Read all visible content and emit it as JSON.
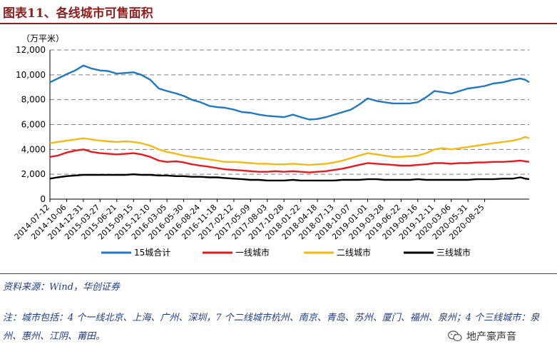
{
  "header": {
    "title": "图表11、各线城市可售面积"
  },
  "chart_data": {
    "type": "line",
    "title": "图表11、各线城市可售面积",
    "unit_label": "（万平米）",
    "ylim": [
      0,
      12000
    ],
    "yticks": [
      0,
      2000,
      4000,
      6000,
      8000,
      10000,
      12000
    ],
    "ytick_labels": [
      "0",
      "2,000",
      "4,000",
      "6,000",
      "8,000",
      "10,000",
      "12,000"
    ],
    "xlim": [
      0,
      2465
    ],
    "x_ticks": [
      {
        "label": "2014-07-12",
        "x": 0
      },
      {
        "label": "2014-10-06",
        "x": 86
      },
      {
        "label": "2014-12-31",
        "x": 172
      },
      {
        "label": "2015-03-27",
        "x": 258
      },
      {
        "label": "2015-06-21",
        "x": 344
      },
      {
        "label": "2015-09-15",
        "x": 430
      },
      {
        "label": "2015-12-10",
        "x": 516
      },
      {
        "label": "2016-03-05",
        "x": 602
      },
      {
        "label": "2016-05-30",
        "x": 688
      },
      {
        "label": "2016-08-24",
        "x": 774
      },
      {
        "label": "2016-11-18",
        "x": 860
      },
      {
        "label": "2017-02-12",
        "x": 946
      },
      {
        "label": "2017-05-09",
        "x": 1032
      },
      {
        "label": "2017-08-03",
        "x": 1118
      },
      {
        "label": "2017-10-28",
        "x": 1204
      },
      {
        "label": "2018-01-22",
        "x": 1290
      },
      {
        "label": "2018-04-18",
        "x": 1376
      },
      {
        "label": "2018-07-13",
        "x": 1462
      },
      {
        "label": "2018-10-07",
        "x": 1548
      },
      {
        "label": "2019-01-01",
        "x": 1634
      },
      {
        "label": "2019-03-28",
        "x": 1720
      },
      {
        "label": "2019-06-22",
        "x": 1806
      },
      {
        "label": "2019-09-16",
        "x": 1892
      },
      {
        "label": "2019-12-11",
        "x": 1978
      },
      {
        "label": "2020-03-06",
        "x": 2064
      },
      {
        "label": "2020-05-31",
        "x": 2150
      },
      {
        "label": "2020-08-25",
        "x": 2236
      }
    ],
    "grid": "horizontal-dashed",
    "legend_position": "bottom",
    "series": [
      {
        "name": "15城合计",
        "color": "#1f78c1",
        "points": [
          [
            0,
            9400
          ],
          [
            40,
            9700
          ],
          [
            86,
            10050
          ],
          [
            130,
            10350
          ],
          [
            172,
            10750
          ],
          [
            215,
            10500
          ],
          [
            258,
            10350
          ],
          [
            300,
            10300
          ],
          [
            344,
            10100
          ],
          [
            390,
            10150
          ],
          [
            430,
            10200
          ],
          [
            470,
            10000
          ],
          [
            516,
            9600
          ],
          [
            560,
            8900
          ],
          [
            602,
            8700
          ],
          [
            650,
            8500
          ],
          [
            688,
            8300
          ],
          [
            730,
            8000
          ],
          [
            774,
            7800
          ],
          [
            820,
            7500
          ],
          [
            860,
            7400
          ],
          [
            900,
            7350
          ],
          [
            946,
            7200
          ],
          [
            990,
            7000
          ],
          [
            1032,
            6950
          ],
          [
            1075,
            6800
          ],
          [
            1118,
            6700
          ],
          [
            1160,
            6650
          ],
          [
            1204,
            6600
          ],
          [
            1250,
            6800
          ],
          [
            1290,
            6600
          ],
          [
            1335,
            6400
          ],
          [
            1376,
            6450
          ],
          [
            1420,
            6600
          ],
          [
            1462,
            6800
          ],
          [
            1505,
            7000
          ],
          [
            1548,
            7200
          ],
          [
            1590,
            7600
          ],
          [
            1634,
            8100
          ],
          [
            1680,
            7900
          ],
          [
            1720,
            7800
          ],
          [
            1765,
            7700
          ],
          [
            1806,
            7700
          ],
          [
            1850,
            7700
          ],
          [
            1892,
            7800
          ],
          [
            1935,
            8200
          ],
          [
            1978,
            8700
          ],
          [
            2020,
            8600
          ],
          [
            2064,
            8500
          ],
          [
            2108,
            8700
          ],
          [
            2150,
            8900
          ],
          [
            2195,
            9000
          ],
          [
            2236,
            9100
          ],
          [
            2280,
            9300
          ],
          [
            2330,
            9400
          ],
          [
            2380,
            9600
          ],
          [
            2420,
            9700
          ],
          [
            2445,
            9600
          ],
          [
            2465,
            9400
          ]
        ]
      },
      {
        "name": "一线城市",
        "color": "#e8191e",
        "points": [
          [
            0,
            3400
          ],
          [
            40,
            3500
          ],
          [
            86,
            3750
          ],
          [
            130,
            3900
          ],
          [
            172,
            4000
          ],
          [
            215,
            3800
          ],
          [
            258,
            3700
          ],
          [
            300,
            3650
          ],
          [
            344,
            3600
          ],
          [
            390,
            3650
          ],
          [
            430,
            3700
          ],
          [
            470,
            3600
          ],
          [
            516,
            3400
          ],
          [
            560,
            3100
          ],
          [
            602,
            3000
          ],
          [
            650,
            3050
          ],
          [
            688,
            2950
          ],
          [
            730,
            2800
          ],
          [
            774,
            2700
          ],
          [
            820,
            2600
          ],
          [
            860,
            2500
          ],
          [
            900,
            2400
          ],
          [
            946,
            2350
          ],
          [
            990,
            2300
          ],
          [
            1032,
            2250
          ],
          [
            1075,
            2200
          ],
          [
            1118,
            2200
          ],
          [
            1160,
            2250
          ],
          [
            1204,
            2200
          ],
          [
            1250,
            2250
          ],
          [
            1290,
            2200
          ],
          [
            1335,
            2150
          ],
          [
            1376,
            2200
          ],
          [
            1420,
            2250
          ],
          [
            1462,
            2350
          ],
          [
            1505,
            2450
          ],
          [
            1548,
            2600
          ],
          [
            1590,
            2750
          ],
          [
            1634,
            2900
          ],
          [
            1680,
            2850
          ],
          [
            1720,
            2800
          ],
          [
            1765,
            2750
          ],
          [
            1806,
            2700
          ],
          [
            1850,
            2700
          ],
          [
            1892,
            2750
          ],
          [
            1935,
            2800
          ],
          [
            1978,
            2900
          ],
          [
            2020,
            2900
          ],
          [
            2064,
            2850
          ],
          [
            2108,
            2900
          ],
          [
            2150,
            2900
          ],
          [
            2195,
            2950
          ],
          [
            2236,
            2950
          ],
          [
            2280,
            3000
          ],
          [
            2330,
            3000
          ],
          [
            2380,
            3050
          ],
          [
            2420,
            3100
          ],
          [
            2465,
            3000
          ]
        ]
      },
      {
        "name": "二线城市",
        "color": "#f5b915",
        "points": [
          [
            0,
            4500
          ],
          [
            40,
            4600
          ],
          [
            86,
            4700
          ],
          [
            130,
            4800
          ],
          [
            172,
            4900
          ],
          [
            215,
            4800
          ],
          [
            258,
            4700
          ],
          [
            300,
            4650
          ],
          [
            344,
            4600
          ],
          [
            390,
            4650
          ],
          [
            430,
            4600
          ],
          [
            470,
            4500
          ],
          [
            516,
            4300
          ],
          [
            560,
            4000
          ],
          [
            602,
            3800
          ],
          [
            650,
            3650
          ],
          [
            688,
            3500
          ],
          [
            730,
            3400
          ],
          [
            774,
            3300
          ],
          [
            820,
            3200
          ],
          [
            860,
            3100
          ],
          [
            900,
            3000
          ],
          [
            946,
            3000
          ],
          [
            990,
            2950
          ],
          [
            1032,
            2900
          ],
          [
            1075,
            2850
          ],
          [
            1118,
            2850
          ],
          [
            1160,
            2800
          ],
          [
            1204,
            2800
          ],
          [
            1250,
            2850
          ],
          [
            1290,
            2800
          ],
          [
            1335,
            2750
          ],
          [
            1376,
            2800
          ],
          [
            1420,
            2850
          ],
          [
            1462,
            2950
          ],
          [
            1505,
            3100
          ],
          [
            1548,
            3300
          ],
          [
            1590,
            3500
          ],
          [
            1634,
            3700
          ],
          [
            1680,
            3600
          ],
          [
            1720,
            3500
          ],
          [
            1765,
            3400
          ],
          [
            1806,
            3400
          ],
          [
            1850,
            3450
          ],
          [
            1892,
            3500
          ],
          [
            1935,
            3700
          ],
          [
            1978,
            4000
          ],
          [
            2020,
            4100
          ],
          [
            2064,
            4000
          ],
          [
            2108,
            4100
          ],
          [
            2150,
            4200
          ],
          [
            2195,
            4300
          ],
          [
            2236,
            4400
          ],
          [
            2280,
            4500
          ],
          [
            2330,
            4600
          ],
          [
            2380,
            4700
          ],
          [
            2420,
            4850
          ],
          [
            2445,
            5000
          ],
          [
            2465,
            4900
          ]
        ]
      },
      {
        "name": "三线城市",
        "color": "#000000",
        "points": [
          [
            0,
            1650
          ],
          [
            40,
            1750
          ],
          [
            86,
            1850
          ],
          [
            130,
            1900
          ],
          [
            172,
            1950
          ],
          [
            215,
            1950
          ],
          [
            258,
            1950
          ],
          [
            300,
            1950
          ],
          [
            344,
            1950
          ],
          [
            390,
            1950
          ],
          [
            430,
            2000
          ],
          [
            470,
            1950
          ],
          [
            516,
            1950
          ],
          [
            560,
            1900
          ],
          [
            602,
            1900
          ],
          [
            650,
            1850
          ],
          [
            688,
            1850
          ],
          [
            730,
            1800
          ],
          [
            774,
            1800
          ],
          [
            820,
            1750
          ],
          [
            860,
            1750
          ],
          [
            900,
            1700
          ],
          [
            946,
            1650
          ],
          [
            990,
            1600
          ],
          [
            1032,
            1550
          ],
          [
            1075,
            1550
          ],
          [
            1118,
            1500
          ],
          [
            1160,
            1500
          ],
          [
            1204,
            1500
          ],
          [
            1250,
            1550
          ],
          [
            1290,
            1500
          ],
          [
            1335,
            1500
          ],
          [
            1376,
            1500
          ],
          [
            1420,
            1500
          ],
          [
            1462,
            1500
          ],
          [
            1505,
            1550
          ],
          [
            1548,
            1550
          ],
          [
            1590,
            1550
          ],
          [
            1634,
            1600
          ],
          [
            1680,
            1600
          ],
          [
            1720,
            1550
          ],
          [
            1765,
            1550
          ],
          [
            1806,
            1550
          ],
          [
            1850,
            1550
          ],
          [
            1892,
            1600
          ],
          [
            1935,
            1550
          ],
          [
            1978,
            1550
          ],
          [
            2020,
            1550
          ],
          [
            2064,
            1550
          ],
          [
            2108,
            1550
          ],
          [
            2150,
            1550
          ],
          [
            2195,
            1600
          ],
          [
            2236,
            1600
          ],
          [
            2280,
            1600
          ],
          [
            2330,
            1650
          ],
          [
            2380,
            1650
          ],
          [
            2420,
            1750
          ],
          [
            2445,
            1650
          ],
          [
            2465,
            1600
          ]
        ]
      }
    ]
  },
  "source": "资料来源：Wind，华创证券",
  "note": "注：城市包括：4 个一线北京、上海、广州、深圳，7 个二线城市杭州、南京、青岛、苏州、厦门、福州、泉州；4 个三线城市：泉州、惠州、江阴、莆田。",
  "watermark": {
    "icon": "wechat-icon",
    "text": "地产豪声音"
  }
}
